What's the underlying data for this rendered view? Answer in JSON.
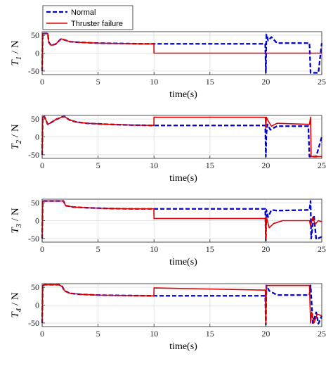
{
  "chart_data": [
    {
      "type": "line",
      "ylabel_var": "T",
      "ylabel_sub": "1",
      "ylabel_unit": " / N",
      "xlabel": "time(s)",
      "xlim": [
        0,
        25
      ],
      "ylim": [
        -60,
        60
      ],
      "xticks": [
        "0",
        "5",
        "10",
        "15",
        "20",
        "25"
      ],
      "yticks": [
        "50",
        "0",
        "-50"
      ],
      "grid": true,
      "legend": {
        "placement": "top-left",
        "entries": [
          "Normal",
          "Thruster failure"
        ]
      },
      "series": [
        {
          "name": "Normal",
          "style": "dashed",
          "color": "#0000cc",
          "x": [
            0,
            0.05,
            0.12,
            0.22,
            0.5,
            0.6,
            0.8,
            1.2,
            1.7,
            2.0,
            2.5,
            3.5,
            5,
            7,
            9,
            10,
            15,
            19.95,
            20.0,
            20.05,
            20.1,
            20.2,
            20.5,
            21.0,
            23.9,
            24.0,
            24.1,
            24.3,
            24.7,
            25.0
          ],
          "y": [
            -50,
            55,
            55,
            55,
            55,
            30,
            22,
            25,
            40,
            37,
            32,
            30,
            28,
            27,
            26,
            26,
            26,
            26,
            -55,
            52,
            50,
            35,
            45,
            28,
            28,
            -55,
            -55,
            -55,
            -55,
            28
          ]
        },
        {
          "name": "Thruster failure",
          "style": "solid",
          "color": "#e00000",
          "x": [
            0,
            0.05,
            0.12,
            0.22,
            0.5,
            0.6,
            0.8,
            1.2,
            1.7,
            2.0,
            2.5,
            3.5,
            5,
            7,
            9,
            9.99,
            10.0,
            25.0
          ],
          "y": [
            -50,
            55,
            55,
            55,
            55,
            30,
            22,
            25,
            40,
            37,
            32,
            30,
            28,
            27,
            26,
            26,
            0,
            0
          ]
        }
      ]
    },
    {
      "type": "line",
      "ylabel_var": "T",
      "ylabel_sub": "2",
      "ylabel_unit": " / N",
      "xlabel": "time(s)",
      "xlim": [
        0,
        25
      ],
      "ylim": [
        -60,
        60
      ],
      "xticks": [
        "0",
        "5",
        "10",
        "15",
        "20",
        "25"
      ],
      "yticks": [
        "50",
        "0",
        "-50"
      ],
      "grid": true,
      "series": [
        {
          "name": "Normal",
          "style": "dashed",
          "color": "#0000cc",
          "x": [
            0,
            0.05,
            0.2,
            0.5,
            0.8,
            1.2,
            1.8,
            2.0,
            2.4,
            3,
            4,
            6,
            8,
            10,
            15,
            19.95,
            20.0,
            20.05,
            20.15,
            20.4,
            21.0,
            23.8,
            23.9,
            24.5,
            25.0
          ],
          "y": [
            -50,
            55,
            57,
            35,
            40,
            48,
            56,
            57,
            48,
            42,
            38,
            35,
            33,
            32,
            32,
            32,
            -55,
            10,
            35,
            20,
            30,
            30,
            -55,
            -55,
            0
          ]
        },
        {
          "name": "Thruster failure",
          "style": "solid",
          "color": "#e00000",
          "x": [
            0,
            0.05,
            0.2,
            0.5,
            0.8,
            1.2,
            1.8,
            2.0,
            2.4,
            3,
            4,
            6,
            8,
            9.99,
            10.0,
            19.95,
            20.0,
            20.05,
            20.2,
            20.5,
            21,
            23.9,
            24.0,
            24.05,
            25.0
          ],
          "y": [
            -50,
            55,
            57,
            35,
            40,
            48,
            56,
            57,
            48,
            42,
            38,
            35,
            33,
            32,
            55,
            55,
            25,
            55,
            45,
            30,
            38,
            35,
            55,
            -55,
            -55
          ]
        }
      ]
    },
    {
      "type": "line",
      "ylabel_var": "T",
      "ylabel_sub": "3",
      "ylabel_unit": " / N",
      "xlabel": "time(s)",
      "xlim": [
        0,
        25
      ],
      "ylim": [
        -60,
        60
      ],
      "xticks": [
        "0",
        "5",
        "10",
        "15",
        "20",
        "25"
      ],
      "yticks": [
        "50",
        "0",
        "-50"
      ],
      "grid": true,
      "series": [
        {
          "name": "Normal",
          "style": "dashed",
          "color": "#0000cc",
          "x": [
            0,
            0.05,
            0.2,
            1.5,
            1.9,
            2.1,
            2.8,
            4,
            6,
            8,
            10,
            15,
            19.95,
            20.0,
            20.05,
            20.2,
            20.5,
            21.0,
            23.9,
            24.0,
            24.05,
            24.3,
            24.5,
            25.0
          ],
          "y": [
            -50,
            55,
            55,
            55,
            55,
            42,
            38,
            36,
            34,
            33,
            33,
            33,
            33,
            -55,
            30,
            10,
            30,
            28,
            30,
            55,
            -50,
            15,
            -52,
            -45
          ]
        },
        {
          "name": "Thruster failure",
          "style": "solid",
          "color": "#e00000",
          "x": [
            0,
            0.05,
            0.2,
            1.5,
            1.9,
            2.1,
            2.8,
            4,
            6,
            8,
            9.99,
            10.0,
            19.95,
            20.0,
            20.05,
            20.3,
            20.7,
            21.5,
            22.5,
            23.9,
            24.0,
            24.2,
            24.4,
            24.7,
            25.0
          ],
          "y": [
            -50,
            55,
            55,
            55,
            55,
            42,
            38,
            36,
            34,
            33,
            33,
            6,
            6,
            -50,
            10,
            -20,
            -8,
            0,
            0,
            0,
            -15,
            10,
            -10,
            0,
            -3
          ]
        }
      ]
    },
    {
      "type": "line",
      "ylabel_var": "T",
      "ylabel_sub": "4",
      "ylabel_unit": " / N",
      "xlabel": "time(s)",
      "xlim": [
        0,
        25
      ],
      "ylim": [
        -60,
        60
      ],
      "xticks": [
        "0",
        "5",
        "10",
        "15",
        "20",
        "25"
      ],
      "yticks": [
        "50",
        "0",
        "-50"
      ],
      "grid": true,
      "series": [
        {
          "name": "Normal",
          "style": "dashed",
          "color": "#0000cc",
          "x": [
            0,
            0.05,
            0.2,
            1.5,
            1.8,
            2.0,
            2.5,
            3.5,
            5,
            7,
            10,
            15,
            19.95,
            20.0,
            20.05,
            20.3,
            21.0,
            23.9,
            24.0,
            24.2,
            24.5,
            24.7,
            25.0
          ],
          "y": [
            -50,
            55,
            57,
            57,
            52,
            40,
            33,
            30,
            28,
            27,
            26,
            26,
            26,
            -55,
            55,
            40,
            28,
            28,
            55,
            -50,
            -20,
            -52,
            -30
          ]
        },
        {
          "name": "Thruster failure",
          "style": "solid",
          "color": "#e00000",
          "x": [
            0,
            0.05,
            0.2,
            1.5,
            1.8,
            2.0,
            2.5,
            3.5,
            5,
            7,
            9.99,
            10.0,
            15,
            19.95,
            20.0,
            20.05,
            23.9,
            24.0,
            24.1,
            24.3,
            24.6,
            25.0
          ],
          "y": [
            -50,
            55,
            57,
            57,
            52,
            40,
            33,
            30,
            28,
            27,
            26,
            48,
            45,
            42,
            -50,
            55,
            55,
            -50,
            -20,
            -50,
            -25,
            -30
          ]
        }
      ]
    }
  ]
}
